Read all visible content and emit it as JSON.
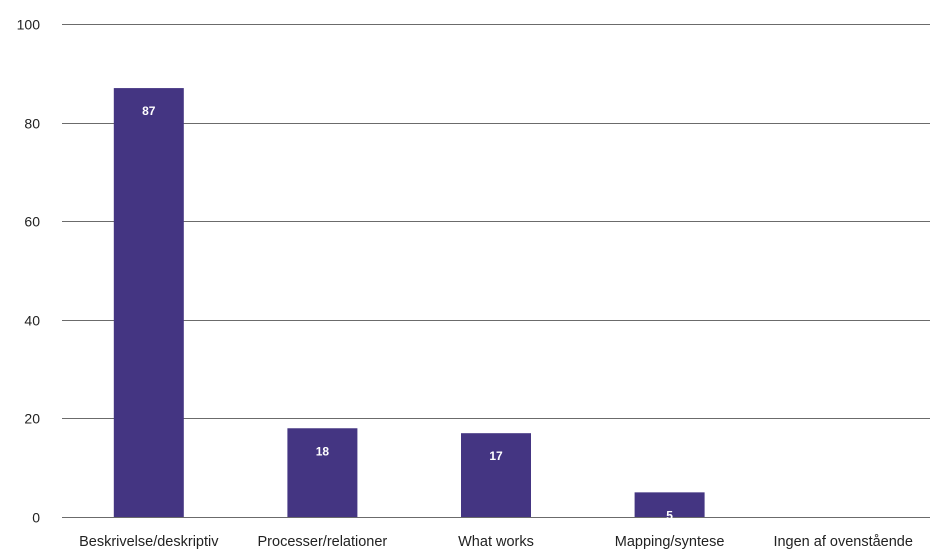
{
  "chart_data": {
    "type": "bar",
    "title": "",
    "xlabel": "",
    "ylabel": "",
    "categories": [
      "Beskrivelse/deskriptiv",
      "Processer/relationer",
      "What works",
      "Mapping/syntese",
      "Ingen af ovenstående"
    ],
    "values": [
      87,
      18,
      17,
      5,
      0
    ],
    "data_labels": [
      "87",
      "18",
      "17",
      "5",
      ""
    ],
    "ylim": [
      0,
      100
    ],
    "yticks": [
      0,
      20,
      40,
      60,
      80,
      100
    ],
    "grid": true,
    "legend": "none",
    "colors": {
      "bar": "#443582",
      "grid": "#6b6b6b",
      "text": "#222222",
      "data_label": "#ffffff"
    }
  }
}
